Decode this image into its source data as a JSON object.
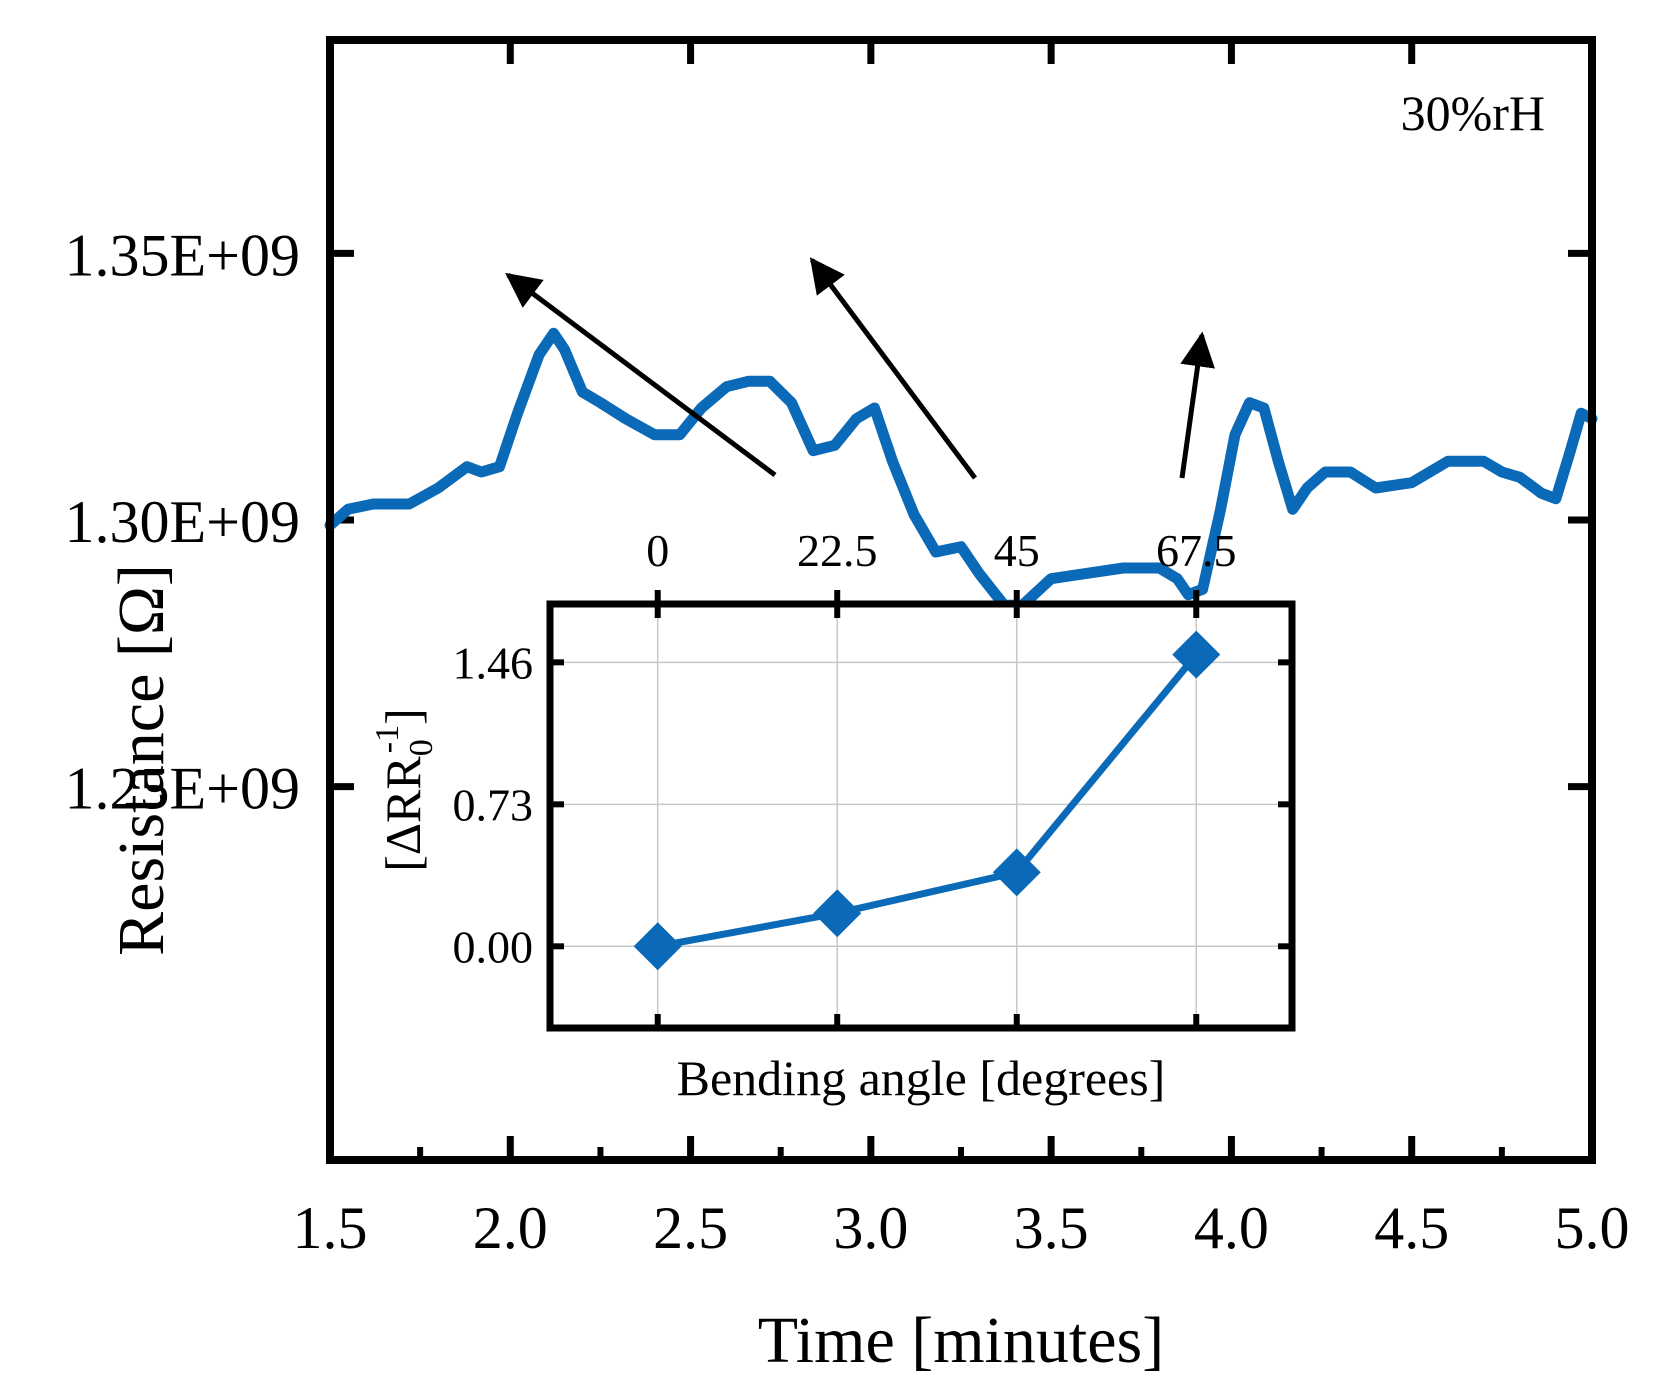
{
  "colors": {
    "series": "#0a6ab8",
    "axis": "#000000",
    "arrow": "#000000",
    "grid": "#c8c8c8"
  },
  "chart_data": [
    {
      "type": "line",
      "role": "main",
      "title": "",
      "xlabel": "Time [minutes]",
      "ylabel": "Resistance [Ω]",
      "xlim": [
        1.5,
        5.0
      ],
      "ylim": [
        1180000000.0,
        1390000000.0
      ],
      "x_ticks": [
        1.5,
        2.0,
        2.5,
        3.0,
        3.5,
        4.0,
        4.5,
        5.0
      ],
      "x_tick_labels": [
        "1.5",
        "2.0",
        "2.5",
        "3.0",
        "3.5",
        "4.0",
        "4.5",
        "5.0"
      ],
      "y_ticks": [
        1250000000.0,
        1300000000.0,
        1350000000.0
      ],
      "y_tick_labels": [
        "1.25E+09",
        "1.30E+09",
        "1.35E+09"
      ],
      "annotation": "30%rH",
      "series": [
        {
          "name": "Resistance",
          "x": [
            1.5,
            1.55,
            1.62,
            1.72,
            1.8,
            1.88,
            1.92,
            1.97,
            2.02,
            2.08,
            2.12,
            2.15,
            2.2,
            2.25,
            2.32,
            2.4,
            2.47,
            2.53,
            2.6,
            2.66,
            2.72,
            2.78,
            2.84,
            2.9,
            2.96,
            3.01,
            3.06,
            3.12,
            3.18,
            3.25,
            3.3,
            3.37,
            3.42,
            3.5,
            3.6,
            3.7,
            3.8,
            3.85,
            3.88,
            3.92,
            3.97,
            4.01,
            4.05,
            4.09,
            4.13,
            4.17,
            4.21,
            4.26,
            4.33,
            4.4,
            4.5,
            4.6,
            4.7,
            4.75,
            4.8,
            4.86,
            4.9,
            4.94,
            4.97,
            5.0
          ],
          "values": [
            1299000000.0,
            1302000000.0,
            1303000000.0,
            1303000000.0,
            1306000000.0,
            1310000000.0,
            1309000000.0,
            1310000000.0,
            1320000000.0,
            1331000000.0,
            1335000000.0,
            1332000000.0,
            1324000000.0,
            1322000000.0,
            1319000000.0,
            1316000000.0,
            1316000000.0,
            1321000000.0,
            1325000000.0,
            1326000000.0,
            1326000000.0,
            1322000000.0,
            1313000000.0,
            1314000000.0,
            1319000000.0,
            1321000000.0,
            1311000000.0,
            1301000000.0,
            1294000000.0,
            1295000000.0,
            1290000000.0,
            1284000000.0,
            1284000000.0,
            1289000000.0,
            1290000000.0,
            1291000000.0,
            1291000000.0,
            1289000000.0,
            1286000000.0,
            1287000000.0,
            1302000000.0,
            1316000000.0,
            1322000000.0,
            1321000000.0,
            1311000000.0,
            1302000000.0,
            1306000000.0,
            1309000000.0,
            1309000000.0,
            1306000000.0,
            1307000000.0,
            1311000000.0,
            1311000000.0,
            1309000000.0,
            1308000000.0,
            1305000000.0,
            1304000000.0,
            1313000000.0,
            1320000000.0,
            1319000000.0
          ]
        }
      ]
    },
    {
      "type": "line",
      "role": "inset",
      "title": "",
      "xlabel": "Bending angle [degrees]",
      "ylabel_parts": {
        "prefix": "[ΔRR",
        "subscript": "0",
        "superscript": "-1",
        "suffix": "]"
      },
      "xlim": [
        -13.5,
        79.5
      ],
      "ylim": [
        -0.42,
        1.76
      ],
      "x_axis_position": "top",
      "grid": true,
      "x_ticks": [
        0,
        22.5,
        45,
        67.5
      ],
      "x_tick_labels": [
        "0",
        "22.5",
        "45",
        "67.5"
      ],
      "y_ticks": [
        0.0,
        0.73,
        1.46
      ],
      "y_tick_labels": [
        "0.00",
        "0.73",
        "1.46"
      ],
      "marker": "diamond",
      "series": [
        {
          "name": "ΔR/R0",
          "x": [
            0,
            22.5,
            45,
            67.5
          ],
          "values": [
            0.0,
            0.17,
            0.38,
            1.5
          ]
        }
      ]
    }
  ]
}
